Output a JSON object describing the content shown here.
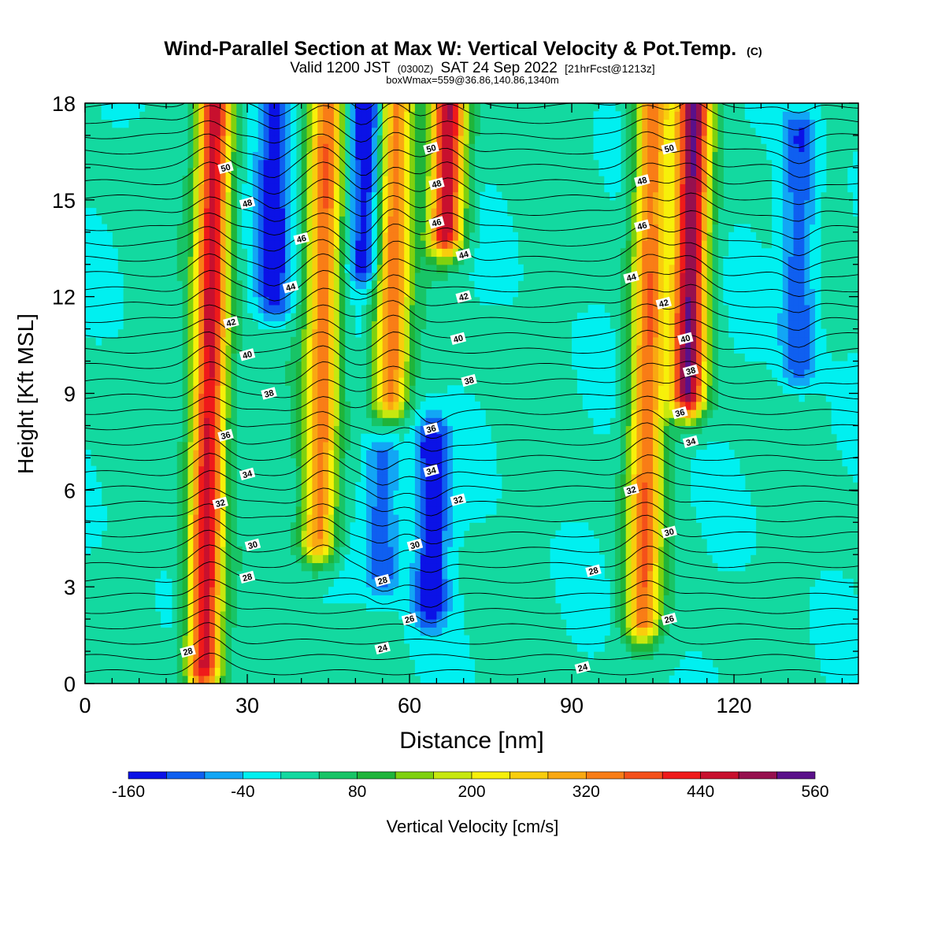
{
  "chart_data": {
    "type": "heatmap",
    "title": "Wind-Parallel Section at Max W: Vertical Velocity & Pot.Temp.",
    "title_mark": "(C)",
    "subtitle_parts": [
      "Valid 1200 JST",
      "(0300Z)",
      "SAT 24 Sep 2022",
      "[21hrFcst@1213z]"
    ],
    "subtitle2": "boxWmax=559@36.86,140.86,1340m",
    "xlabel": "Distance [nm]",
    "ylabel": "Height [Kft MSL]",
    "xlim": [
      0,
      143
    ],
    "ylim": [
      0,
      18
    ],
    "x_ticks": [
      "0",
      "30",
      "60",
      "90",
      "120"
    ],
    "y_ticks": [
      "0",
      "3",
      "6",
      "9",
      "12",
      "15",
      "18"
    ],
    "colorbar": {
      "label": "Vertical Velocity [cm/s]",
      "tick_labels": [
        "-160",
        "-40",
        "80",
        "200",
        "320",
        "440",
        "560"
      ],
      "levels": [
        -160,
        -120,
        -80,
        -40,
        0,
        40,
        80,
        120,
        160,
        200,
        240,
        280,
        320,
        360,
        400,
        440,
        480,
        520,
        560
      ],
      "colors": [
        "#0b12e6",
        "#0f5ff0",
        "#12a6f5",
        "#00f0f0",
        "#13d9a0",
        "#18c466",
        "#1fb43a",
        "#7fd10f",
        "#c7e80f",
        "#f7f00a",
        "#f9cd0d",
        "#f9a812",
        "#f97d16",
        "#f4501a",
        "#ef1a1a",
        "#c8102e",
        "#96104e",
        "#5a108a"
      ]
    },
    "updraft_cores": [
      {
        "x": 23,
        "z_bottom": 0.5,
        "z_top": 18,
        "w_max": 480
      },
      {
        "x": 44,
        "z_bottom": 4.5,
        "z_top": 18,
        "w_max": 360
      },
      {
        "x": 57,
        "z_bottom": 9.0,
        "z_top": 18,
        "w_max": 360
      },
      {
        "x": 67,
        "z_bottom": 14.0,
        "z_top": 18,
        "w_max": 480
      },
      {
        "x": 104,
        "z_bottom": 2.0,
        "z_top": 18,
        "w_max": 360
      },
      {
        "x": 112,
        "z_bottom": 9.0,
        "z_top": 18,
        "w_max": 520
      }
    ],
    "downdraft_cores": [
      {
        "x": 35,
        "z_bottom": 12.0,
        "z_top": 18,
        "w_min": -160
      },
      {
        "x": 52,
        "z_bottom": 13.0,
        "z_top": 18,
        "w_min": -160
      },
      {
        "x": 64,
        "z_bottom": 2.5,
        "z_top": 7.5,
        "w_min": -160
      },
      {
        "x": 55,
        "z_bottom": 3.5,
        "z_top": 7.0,
        "w_min": -120
      },
      {
        "x": 132,
        "z_bottom": 10.0,
        "z_top": 17.0,
        "w_min": -120
      }
    ],
    "theta_contours": {
      "levels": [
        24,
        26,
        28,
        30,
        32,
        34,
        36,
        38,
        40,
        42,
        44,
        46,
        48,
        50
      ],
      "labels": [
        {
          "text": "28",
          "x": 19,
          "z": 1.0
        },
        {
          "text": "24",
          "x": 55,
          "z": 1.1
        },
        {
          "text": "26",
          "x": 60,
          "z": 2.0
        },
        {
          "text": "28",
          "x": 55,
          "z": 3.2
        },
        {
          "text": "30",
          "x": 61,
          "z": 4.3
        },
        {
          "text": "28",
          "x": 30,
          "z": 3.3
        },
        {
          "text": "30",
          "x": 31,
          "z": 4.3
        },
        {
          "text": "32",
          "x": 25,
          "z": 5.6
        },
        {
          "text": "34",
          "x": 30,
          "z": 6.5
        },
        {
          "text": "36",
          "x": 26,
          "z": 7.7
        },
        {
          "text": "38",
          "x": 34,
          "z": 9.0
        },
        {
          "text": "40",
          "x": 30,
          "z": 10.2
        },
        {
          "text": "42",
          "x": 27,
          "z": 11.2
        },
        {
          "text": "44",
          "x": 38,
          "z": 12.3
        },
        {
          "text": "46",
          "x": 40,
          "z": 13.8
        },
        {
          "text": "48",
          "x": 30,
          "z": 14.9
        },
        {
          "text": "50",
          "x": 26,
          "z": 16.0
        },
        {
          "text": "36",
          "x": 64,
          "z": 7.9
        },
        {
          "text": "34",
          "x": 64,
          "z": 6.6
        },
        {
          "text": "32",
          "x": 69,
          "z": 5.7
        },
        {
          "text": "38",
          "x": 71,
          "z": 9.4
        },
        {
          "text": "40",
          "x": 69,
          "z": 10.7
        },
        {
          "text": "42",
          "x": 70,
          "z": 12.0
        },
        {
          "text": "44",
          "x": 70,
          "z": 13.3
        },
        {
          "text": "46",
          "x": 65,
          "z": 14.3
        },
        {
          "text": "48",
          "x": 65,
          "z": 15.5
        },
        {
          "text": "50",
          "x": 64,
          "z": 16.6
        },
        {
          "text": "24",
          "x": 92,
          "z": 0.5
        },
        {
          "text": "28",
          "x": 94,
          "z": 3.5
        },
        {
          "text": "26",
          "x": 108,
          "z": 2.0
        },
        {
          "text": "30",
          "x": 108,
          "z": 4.7
        },
        {
          "text": "32",
          "x": 101,
          "z": 6.0
        },
        {
          "text": "34",
          "x": 112,
          "z": 7.5
        },
        {
          "text": "36",
          "x": 110,
          "z": 8.4
        },
        {
          "text": "38",
          "x": 112,
          "z": 9.7
        },
        {
          "text": "40",
          "x": 111,
          "z": 10.7
        },
        {
          "text": "42",
          "x": 107,
          "z": 11.8
        },
        {
          "text": "44",
          "x": 101,
          "z": 12.6
        },
        {
          "text": "46",
          "x": 103,
          "z": 14.2
        },
        {
          "text": "48",
          "x": 103,
          "z": 15.6
        },
        {
          "text": "50",
          "x": 108,
          "z": 16.6
        }
      ]
    },
    "legend_position": "bottom",
    "grid": false
  }
}
